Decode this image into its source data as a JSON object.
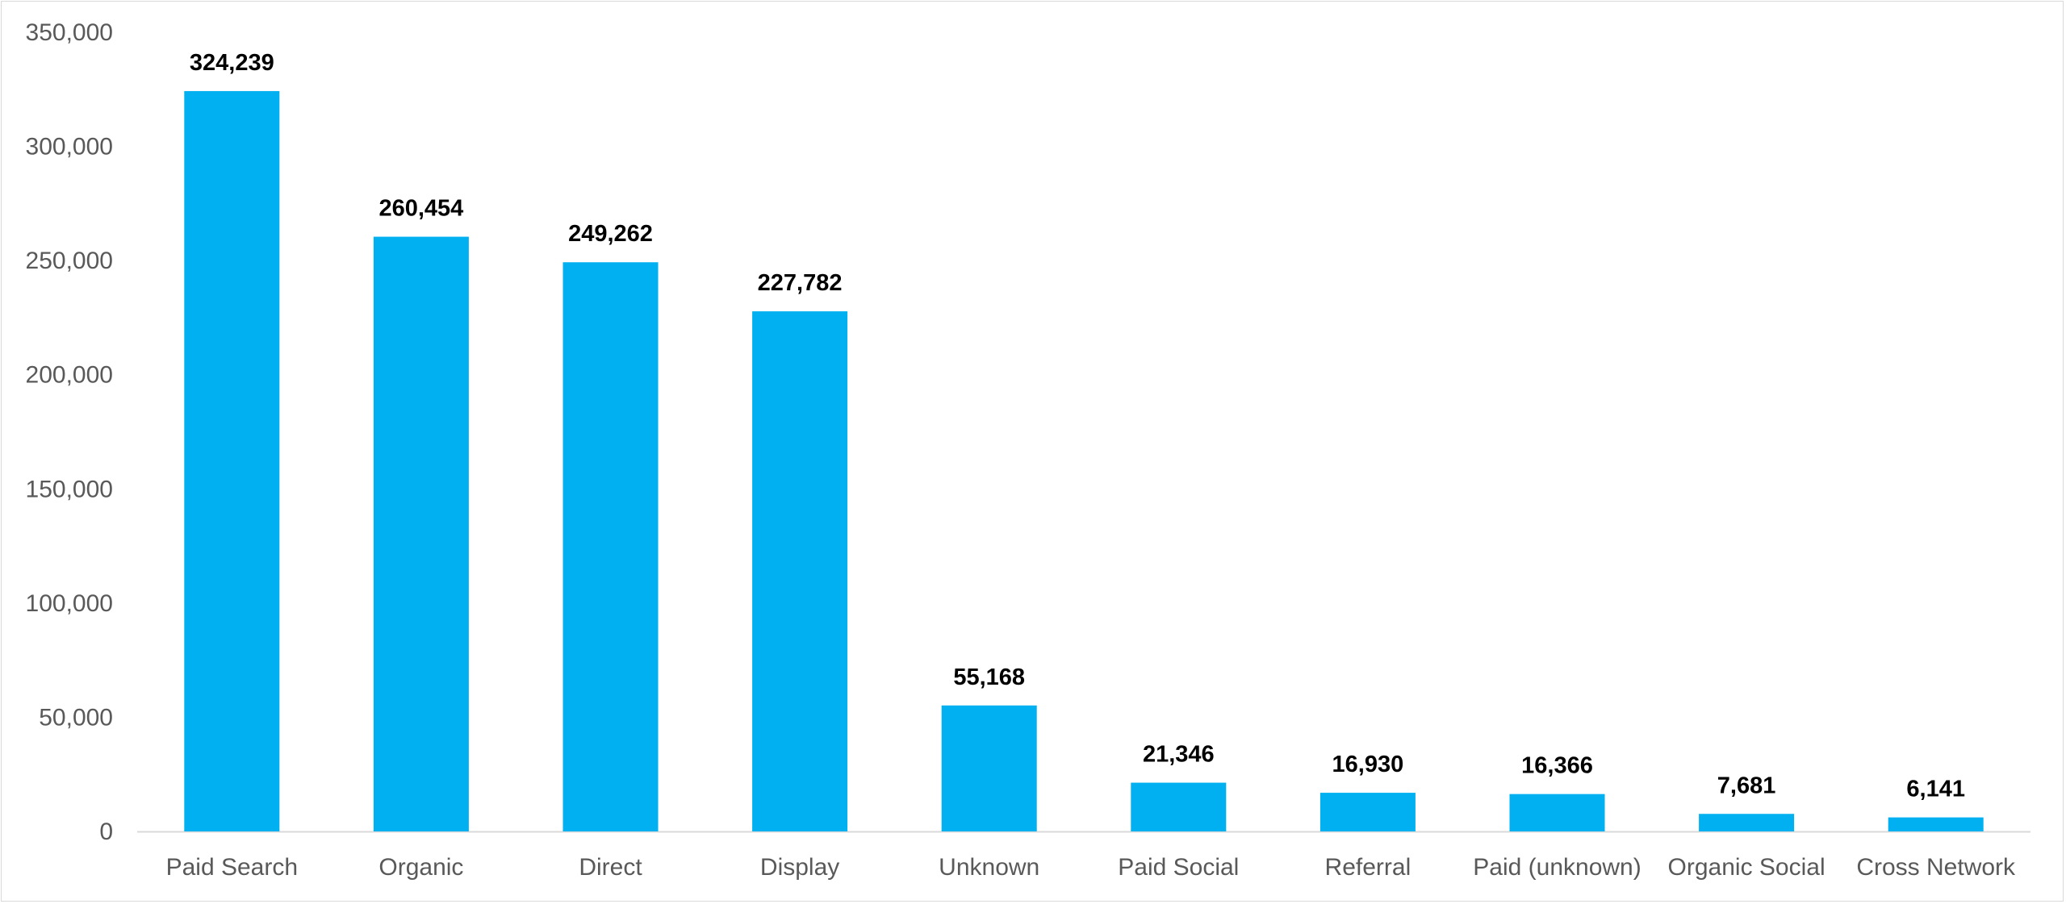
{
  "chart_data": {
    "type": "bar",
    "title": "",
    "xlabel": "",
    "ylabel": "",
    "categories": [
      "Paid Search",
      "Organic",
      "Direct",
      "Display",
      "Unknown",
      "Paid Social",
      "Referral",
      "Paid (unknown)",
      "Organic Social",
      "Cross Network"
    ],
    "values": [
      324239,
      260454,
      249262,
      227782,
      55168,
      21346,
      16930,
      16366,
      7681,
      6141
    ],
    "value_labels": [
      "324,239",
      "260,454",
      "249,262",
      "227,782",
      "55,168",
      "21,346",
      "16,930",
      "16,366",
      "7,681",
      "6,141"
    ],
    "ylim": [
      0,
      350000
    ],
    "y_ticks": [
      0,
      50000,
      100000,
      150000,
      200000,
      250000,
      300000,
      350000
    ],
    "y_tick_labels": [
      "0",
      "50,000",
      "100,000",
      "150,000",
      "200,000",
      "250,000",
      "300,000",
      "350,000"
    ],
    "grid": false,
    "legend": "none",
    "colors": {
      "bar": "#00b0f0",
      "axis": "#d9d9d9",
      "tick_text": "#595959",
      "data_label_text": "#000000"
    }
  }
}
